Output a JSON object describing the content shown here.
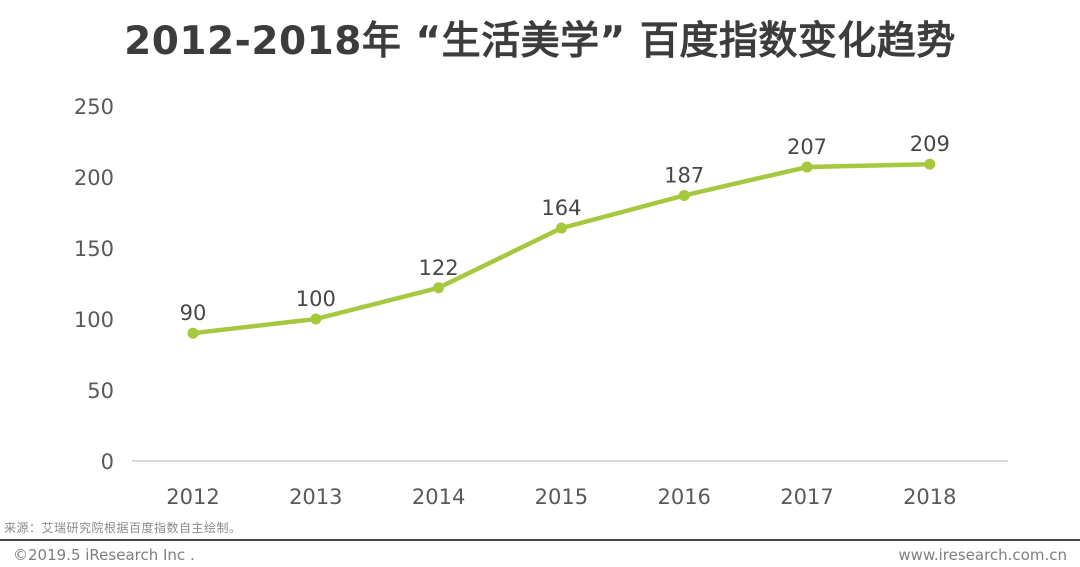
{
  "title": "2012-2018年 “生活美学” 百度指数变化趋势",
  "chart_data": {
    "type": "line",
    "title": "2012-2018年 “生活美学” 百度指数变化趋势",
    "categories": [
      "2012",
      "2013",
      "2014",
      "2015",
      "2016",
      "2017",
      "2018"
    ],
    "values": [
      90,
      100,
      122,
      164,
      187,
      207,
      209
    ],
    "xlabel": "",
    "ylabel": "",
    "ylim": [
      0,
      250
    ],
    "yticks": [
      0,
      50,
      100,
      150,
      200,
      250
    ],
    "grid": false,
    "legend_position": "none",
    "line_color": "#a6c83e",
    "marker_color": "#a6c83e",
    "axis_line_color": "#d9d9d9"
  },
  "source_note": "来源：艾瑞研究院根据百度指数自主绘制。",
  "footer": {
    "left": "©2019.5 iResearch Inc .",
    "right": "www.iresearch.com.cn"
  }
}
